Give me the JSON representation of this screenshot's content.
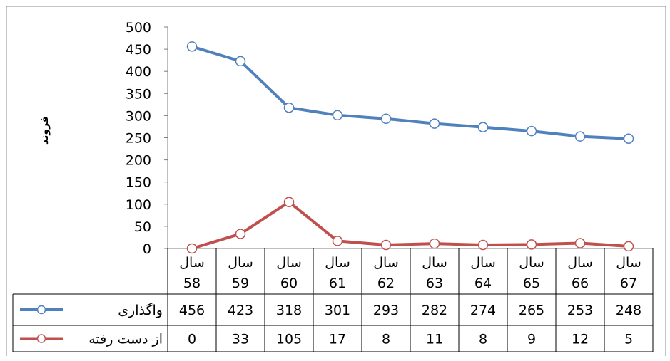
{
  "chart_data": {
    "type": "line",
    "ylabel": "فروند",
    "ylim": [
      0,
      500
    ],
    "yticks": [
      0,
      50,
      100,
      150,
      200,
      250,
      300,
      350,
      400,
      450,
      500
    ],
    "grid": false,
    "categories": [
      {
        "line1": "سال",
        "line2": "58"
      },
      {
        "line1": "سال",
        "line2": "59"
      },
      {
        "line1": "سال",
        "line2": "60"
      },
      {
        "line1": "سال",
        "line2": "61"
      },
      {
        "line1": "سال",
        "line2": "62"
      },
      {
        "line1": "سال",
        "line2": "63"
      },
      {
        "line1": "سال",
        "line2": "64"
      },
      {
        "line1": "سال",
        "line2": "65"
      },
      {
        "line1": "سال",
        "line2": "66"
      },
      {
        "line1": "سال",
        "line2": "67"
      }
    ],
    "series": [
      {
        "name": "واگذاری",
        "color": "#4F81BD",
        "values": [
          456,
          423,
          318,
          301,
          293,
          282,
          274,
          265,
          253,
          248
        ]
      },
      {
        "name": "از دست رفته",
        "color": "#C0504D",
        "values": [
          0,
          33,
          105,
          17,
          8,
          11,
          8,
          9,
          12,
          5
        ]
      }
    ],
    "legend_placement": "data-table"
  }
}
